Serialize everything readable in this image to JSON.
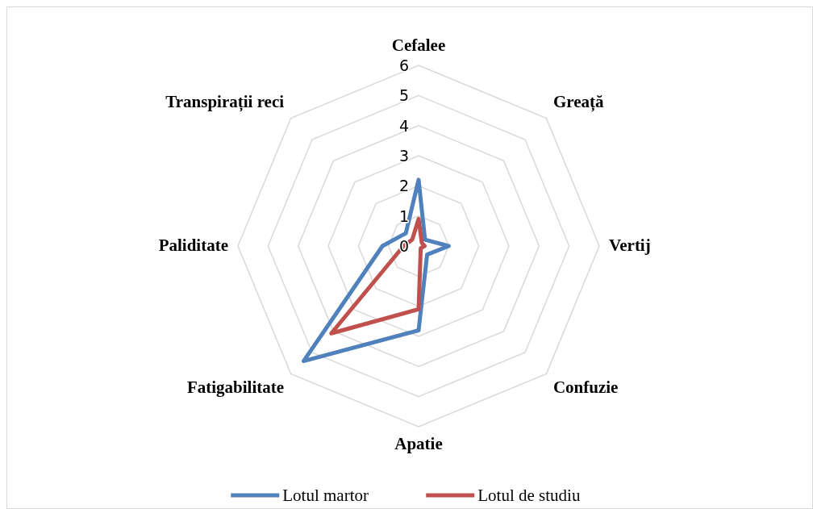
{
  "chart_data": {
    "type": "radar",
    "categories": [
      "Cefalee",
      "Greață",
      "Vertij",
      "Confuzie",
      "Apatie",
      "Fatigabilitate",
      "Paliditate",
      "Transpirații reci"
    ],
    "series": [
      {
        "name": "Lotul martor",
        "color": "#4f81bd",
        "values": [
          2.2,
          0.3,
          1.0,
          0.4,
          2.8,
          5.4,
          1.2,
          0.6
        ]
      },
      {
        "name": "Lotul de studiu",
        "color": "#c0504d",
        "values": [
          0.9,
          0.15,
          0.2,
          0.1,
          2.1,
          4.1,
          0.5,
          0.3
        ]
      }
    ],
    "ylim": [
      0,
      6
    ],
    "yticks": [
      0,
      1,
      2,
      3,
      4,
      5,
      6
    ],
    "grid": true,
    "legend": "bottom"
  }
}
